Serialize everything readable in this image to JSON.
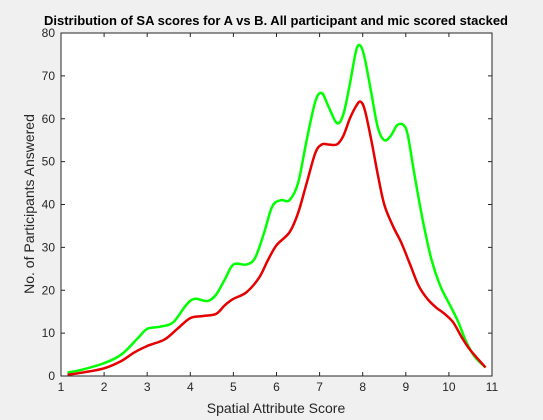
{
  "chart_data": {
    "type": "line",
    "title": "Distribution of SA scores for A vs B. All participant and mic scored stacked",
    "xlabel": "Spatial Attribute Score",
    "ylabel": "No. of Participants Answered",
    "xlim": [
      1,
      11
    ],
    "ylim": [
      0,
      80
    ],
    "xticks": [
      1,
      2,
      3,
      4,
      5,
      6,
      7,
      8,
      9,
      10,
      11
    ],
    "yticks": [
      0,
      10,
      20,
      30,
      40,
      50,
      60,
      70,
      80
    ],
    "grid": false,
    "legend": "none",
    "series": [
      {
        "color": "#00ff00",
        "x": [
          1.15,
          1.5,
          2.0,
          2.4,
          2.8,
          3.0,
          3.3,
          3.6,
          3.9,
          4.1,
          4.4,
          4.6,
          4.8,
          5.0,
          5.3,
          5.5,
          5.7,
          5.9,
          6.1,
          6.3,
          6.5,
          6.7,
          6.9,
          7.05,
          7.2,
          7.4,
          7.55,
          7.7,
          7.85,
          7.95,
          8.05,
          8.2,
          8.35,
          8.5,
          8.65,
          8.8,
          8.95,
          9.05,
          9.2,
          9.4,
          9.6,
          9.8,
          10.0,
          10.2,
          10.4,
          10.6,
          10.85
        ],
        "y": [
          0.8,
          1.5,
          3.0,
          5.0,
          9.0,
          11.0,
          11.5,
          12.5,
          16.5,
          18.0,
          17.5,
          19.0,
          22.5,
          26.0,
          26.0,
          27.5,
          33.0,
          39.5,
          41.0,
          41.0,
          45.0,
          55.0,
          64.0,
          66.0,
          63.0,
          59.0,
          61.0,
          68.0,
          76.0,
          77.0,
          74.0,
          66.0,
          58.0,
          55.0,
          56.0,
          58.5,
          58.5,
          56.0,
          47.0,
          36.0,
          27.0,
          21.0,
          17.0,
          13.0,
          8.0,
          4.5,
          2.0
        ]
      },
      {
        "color": "#e60000",
        "x": [
          1.15,
          1.5,
          2.0,
          2.4,
          2.7,
          3.0,
          3.4,
          3.7,
          4.0,
          4.3,
          4.6,
          4.8,
          5.0,
          5.3,
          5.6,
          5.8,
          6.0,
          6.3,
          6.5,
          6.7,
          6.9,
          7.05,
          7.2,
          7.4,
          7.55,
          7.7,
          7.85,
          7.95,
          8.05,
          8.2,
          8.35,
          8.5,
          8.7,
          8.9,
          9.1,
          9.3,
          9.5,
          9.7,
          9.9,
          10.1,
          10.3,
          10.5,
          10.85
        ],
        "y": [
          0.3,
          0.8,
          1.8,
          3.5,
          5.5,
          7.0,
          8.5,
          11.0,
          13.5,
          14.0,
          14.5,
          16.5,
          18.0,
          19.5,
          23.0,
          27.0,
          30.5,
          33.5,
          38.0,
          45.0,
          52.0,
          54.0,
          54.0,
          54.0,
          56.0,
          60.0,
          63.0,
          64.0,
          62.0,
          55.0,
          47.0,
          40.0,
          35.0,
          31.0,
          26.0,
          21.0,
          18.0,
          16.0,
          14.5,
          12.5,
          9.0,
          6.0,
          2.0
        ]
      }
    ]
  }
}
